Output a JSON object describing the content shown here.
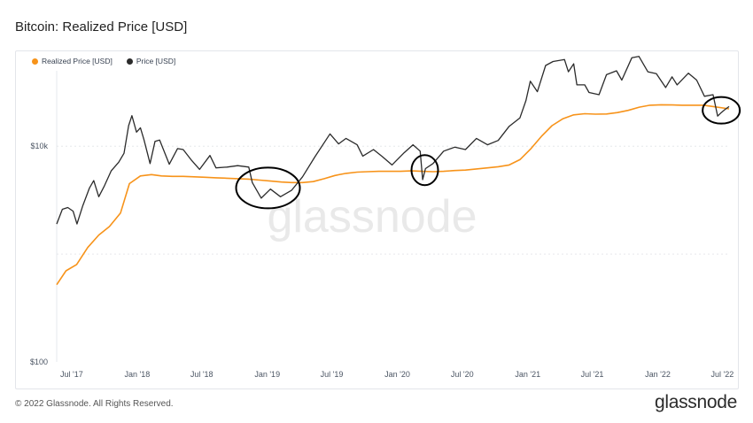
{
  "title": "Bitcoin: Realized Price [USD]",
  "footer": "© 2022 Glassnode. All Rights Reserved.",
  "brand": "glassnode",
  "watermark": "glassnode",
  "colors": {
    "realized_price": "#f7931a",
    "price": "#2b2b2b",
    "grid": "#e6e8ec",
    "annotation": "#000000"
  },
  "chart_data": {
    "type": "line",
    "title": "Bitcoin: Realized Price [USD]",
    "y_scale": "log",
    "ylim": [
      100,
      50000
    ],
    "y_ticks": [
      {
        "value": 100,
        "label": "$100"
      },
      {
        "value": 10000,
        "label": "$10k"
      }
    ],
    "xlim": [
      "2017-05-20",
      "2022-07-20"
    ],
    "x_ticks": [
      {
        "date": "2017-07-01",
        "label": "Jul '17"
      },
      {
        "date": "2018-01-01",
        "label": "Jan '18"
      },
      {
        "date": "2018-07-01",
        "label": "Jul '18"
      },
      {
        "date": "2019-01-01",
        "label": "Jan '19"
      },
      {
        "date": "2019-07-01",
        "label": "Jul '19"
      },
      {
        "date": "2020-01-01",
        "label": "Jan '20"
      },
      {
        "date": "2020-07-01",
        "label": "Jul '20"
      },
      {
        "date": "2021-01-01",
        "label": "Jan '21"
      },
      {
        "date": "2021-07-01",
        "label": "Jul '21"
      },
      {
        "date": "2022-01-01",
        "label": "Jan '22"
      },
      {
        "date": "2022-07-01",
        "label": "Jul '22"
      }
    ],
    "legend_position": "top-left",
    "grid": true,
    "series": [
      {
        "name": "Realized Price [USD]",
        "color": "#f7931a",
        "points": [
          [
            "2017-05-20",
            520
          ],
          [
            "2017-06-15",
            700
          ],
          [
            "2017-07-15",
            800
          ],
          [
            "2017-08-15",
            1150
          ],
          [
            "2017-09-15",
            1500
          ],
          [
            "2017-10-15",
            1800
          ],
          [
            "2017-11-15",
            2400
          ],
          [
            "2017-12-10",
            4500
          ],
          [
            "2018-01-10",
            5300
          ],
          [
            "2018-02-10",
            5450
          ],
          [
            "2018-03-10",
            5300
          ],
          [
            "2018-04-10",
            5250
          ],
          [
            "2018-05-10",
            5250
          ],
          [
            "2018-06-10",
            5200
          ],
          [
            "2018-07-10",
            5150
          ],
          [
            "2018-08-10",
            5100
          ],
          [
            "2018-09-10",
            5050
          ],
          [
            "2018-10-10",
            5000
          ],
          [
            "2018-11-10",
            4950
          ],
          [
            "2018-12-10",
            4850
          ],
          [
            "2019-01-10",
            4750
          ],
          [
            "2019-02-10",
            4650
          ],
          [
            "2019-03-10",
            4600
          ],
          [
            "2019-04-10",
            4600
          ],
          [
            "2019-05-10",
            4700
          ],
          [
            "2019-06-10",
            5000
          ],
          [
            "2019-07-10",
            5350
          ],
          [
            "2019-08-10",
            5600
          ],
          [
            "2019-09-10",
            5750
          ],
          [
            "2019-10-10",
            5800
          ],
          [
            "2019-11-10",
            5850
          ],
          [
            "2019-12-10",
            5850
          ],
          [
            "2020-01-10",
            5850
          ],
          [
            "2020-02-10",
            5900
          ],
          [
            "2020-03-10",
            5850
          ],
          [
            "2020-04-10",
            5800
          ],
          [
            "2020-05-10",
            5850
          ],
          [
            "2020-06-10",
            5950
          ],
          [
            "2020-07-10",
            6000
          ],
          [
            "2020-08-10",
            6150
          ],
          [
            "2020-09-10",
            6300
          ],
          [
            "2020-10-10",
            6450
          ],
          [
            "2020-11-10",
            6700
          ],
          [
            "2020-12-10",
            7500
          ],
          [
            "2021-01-10",
            9500
          ],
          [
            "2021-02-10",
            12500
          ],
          [
            "2021-03-10",
            15500
          ],
          [
            "2021-04-10",
            18000
          ],
          [
            "2021-05-10",
            19500
          ],
          [
            "2021-06-10",
            20000
          ],
          [
            "2021-07-10",
            19800
          ],
          [
            "2021-08-10",
            19900
          ],
          [
            "2021-09-10",
            20500
          ],
          [
            "2021-10-10",
            21500
          ],
          [
            "2021-11-10",
            23000
          ],
          [
            "2021-12-10",
            24000
          ],
          [
            "2022-01-10",
            24200
          ],
          [
            "2022-02-10",
            24100
          ],
          [
            "2022-03-10",
            24000
          ],
          [
            "2022-04-10",
            24000
          ],
          [
            "2022-05-10",
            24000
          ],
          [
            "2022-06-10",
            23200
          ],
          [
            "2022-07-20",
            22200
          ]
        ]
      },
      {
        "name": "Price [USD]",
        "color": "#2b2b2b",
        "points": [
          [
            "2017-05-20",
            1900
          ],
          [
            "2017-06-05",
            2600
          ],
          [
            "2017-06-20",
            2700
          ],
          [
            "2017-07-05",
            2500
          ],
          [
            "2017-07-16",
            1900
          ],
          [
            "2017-08-01",
            2800
          ],
          [
            "2017-08-20",
            4100
          ],
          [
            "2017-09-01",
            4800
          ],
          [
            "2017-09-15",
            3400
          ],
          [
            "2017-10-01",
            4300
          ],
          [
            "2017-10-20",
            5900
          ],
          [
            "2017-11-10",
            7100
          ],
          [
            "2017-11-25",
            8600
          ],
          [
            "2017-12-08",
            15500
          ],
          [
            "2017-12-17",
            19200
          ],
          [
            "2017-12-30",
            13500
          ],
          [
            "2018-01-10",
            14800
          ],
          [
            "2018-01-20",
            11500
          ],
          [
            "2018-02-06",
            6900
          ],
          [
            "2018-02-20",
            11100
          ],
          [
            "2018-03-05",
            11400
          ],
          [
            "2018-04-01",
            6800
          ],
          [
            "2018-04-24",
            9500
          ],
          [
            "2018-05-10",
            9300
          ],
          [
            "2018-06-01",
            7500
          ],
          [
            "2018-06-25",
            6100
          ],
          [
            "2018-07-24",
            8200
          ],
          [
            "2018-08-10",
            6300
          ],
          [
            "2018-09-10",
            6400
          ],
          [
            "2018-10-10",
            6600
          ],
          [
            "2018-11-10",
            6400
          ],
          [
            "2018-11-20",
            4600
          ],
          [
            "2018-12-15",
            3300
          ],
          [
            "2019-01-10",
            4000
          ],
          [
            "2019-02-07",
            3400
          ],
          [
            "2019-03-10",
            3900
          ],
          [
            "2019-04-10",
            5200
          ],
          [
            "2019-05-15",
            8000
          ],
          [
            "2019-06-26",
            13000
          ],
          [
            "2019-07-20",
            10500
          ],
          [
            "2019-08-10",
            11800
          ],
          [
            "2019-09-10",
            10300
          ],
          [
            "2019-09-26",
            8100
          ],
          [
            "2019-10-26",
            9300
          ],
          [
            "2019-11-20",
            8000
          ],
          [
            "2019-12-17",
            6700
          ],
          [
            "2020-01-20",
            8700
          ],
          [
            "2020-02-14",
            10300
          ],
          [
            "2020-03-05",
            9000
          ],
          [
            "2020-03-12",
            4900
          ],
          [
            "2020-03-20",
            6200
          ],
          [
            "2020-04-10",
            6900
          ],
          [
            "2020-05-10",
            9000
          ],
          [
            "2020-06-10",
            9800
          ],
          [
            "2020-07-10",
            9300
          ],
          [
            "2020-08-10",
            11800
          ],
          [
            "2020-09-10",
            10300
          ],
          [
            "2020-10-10",
            11300
          ],
          [
            "2020-11-10",
            15300
          ],
          [
            "2020-12-10",
            18300
          ],
          [
            "2020-12-27",
            26500
          ],
          [
            "2021-01-08",
            40000
          ],
          [
            "2021-01-28",
            32000
          ],
          [
            "2021-02-20",
            56000
          ],
          [
            "2021-03-13",
            61000
          ],
          [
            "2021-04-14",
            63500
          ],
          [
            "2021-04-25",
            49000
          ],
          [
            "2021-05-10",
            58000
          ],
          [
            "2021-05-19",
            37000
          ],
          [
            "2021-06-10",
            37000
          ],
          [
            "2021-06-22",
            31500
          ],
          [
            "2021-07-20",
            30000
          ],
          [
            "2021-08-10",
            46000
          ],
          [
            "2021-09-07",
            50000
          ],
          [
            "2021-09-22",
            41000
          ],
          [
            "2021-10-20",
            66000
          ],
          [
            "2021-11-09",
            68000
          ],
          [
            "2021-12-04",
            49000
          ],
          [
            "2021-12-28",
            47000
          ],
          [
            "2022-01-23",
            35000
          ],
          [
            "2022-02-10",
            44000
          ],
          [
            "2022-02-24",
            37000
          ],
          [
            "2022-03-28",
            47500
          ],
          [
            "2022-04-20",
            41000
          ],
          [
            "2022-05-12",
            29000
          ],
          [
            "2022-06-05",
            30000
          ],
          [
            "2022-06-18",
            19000
          ],
          [
            "2022-06-28",
            20500
          ],
          [
            "2022-07-08",
            21800
          ],
          [
            "2022-07-20",
            23300
          ]
        ]
      }
    ],
    "annotations": [
      {
        "type": "ellipse",
        "date": "2019-01-03",
        "value": 4100,
        "label": ""
      },
      {
        "type": "ellipse",
        "date": "2020-03-18",
        "value": 6000,
        "label": ""
      },
      {
        "type": "ellipse",
        "date": "2022-06-28",
        "value": 21500,
        "label": ""
      }
    ]
  }
}
